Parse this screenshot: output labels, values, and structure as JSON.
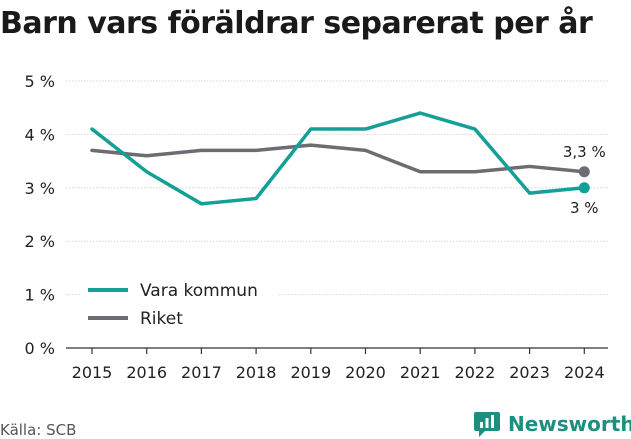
{
  "page": {
    "title": "Barn vars föräldrar separerat per år",
    "source": "Källa: SCB",
    "brand": "Newsworthy"
  },
  "chart_data": {
    "type": "line",
    "title": "Barn vars föräldrar separerat per år",
    "xlabel": "",
    "ylabel": "",
    "categories": [
      "2015",
      "2016",
      "2017",
      "2018",
      "2019",
      "2020",
      "2021",
      "2022",
      "2023",
      "2024"
    ],
    "y_ticks": [
      "0 %",
      "1 %",
      "2 %",
      "3 %",
      "4 %",
      "5 %"
    ],
    "ylim": [
      0,
      5
    ],
    "grid": true,
    "legend_position": "bottom-left",
    "series": [
      {
        "name": "Vara kommun",
        "color": "#15a097",
        "values": [
          4.1,
          3.3,
          2.7,
          2.8,
          4.1,
          4.1,
          4.4,
          4.1,
          2.9,
          3.0
        ],
        "end_label": "3 %"
      },
      {
        "name": "Riket",
        "color": "#6d6c72",
        "values": [
          3.7,
          3.6,
          3.7,
          3.7,
          3.8,
          3.7,
          3.3,
          3.3,
          3.4,
          3.3
        ],
        "end_label": "3,3 %"
      }
    ]
  }
}
